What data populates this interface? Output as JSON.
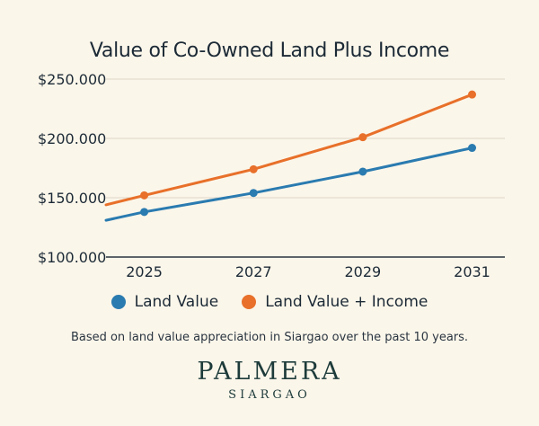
{
  "colors": {
    "background": "#fbf6ea",
    "land_value": "#2a7bb0",
    "land_value_income": "#e8702a",
    "grid": "#ddd6c8",
    "brand": "#1d3b3a"
  },
  "chart_data": {
    "type": "line",
    "title": "Value of Co-Owned Land Plus Income",
    "xlabel": "",
    "ylabel": "",
    "x_ticks": [
      "2025",
      "2027",
      "2029",
      "2031"
    ],
    "y_ticks": [
      "$100.000",
      "$150.000",
      "$200.000",
      "$250.000"
    ],
    "y_tick_values": [
      100000,
      150000,
      200000,
      250000
    ],
    "ylim": [
      100000,
      250000
    ],
    "xlim": [
      2024.3,
      2031.6
    ],
    "grid": "horizontal",
    "legend_position": "bottom",
    "series": [
      {
        "name": "Land Value",
        "color": "#2a7bb0",
        "line_start": [
          2024.3,
          131000
        ],
        "x": [
          2025,
          2027,
          2029,
          2031
        ],
        "values": [
          138000,
          154000,
          172000,
          192000
        ]
      },
      {
        "name": "Land Value + Income",
        "color": "#e8702a",
        "line_start": [
          2024.3,
          144000
        ],
        "x": [
          2025,
          2027,
          2029,
          2031
        ],
        "values": [
          152000,
          174000,
          201000,
          237000
        ]
      }
    ]
  },
  "footnote": "Based on land value appreciation in Siargao over the past 10 years.",
  "brand": {
    "name": "PALMERA",
    "sub": "SIARGAO"
  }
}
